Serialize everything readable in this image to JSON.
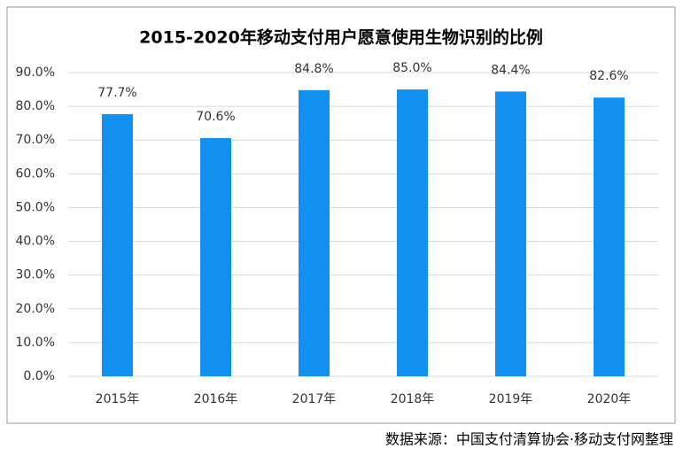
{
  "chart_data": {
    "type": "bar",
    "title": "2015-2020年移动支付用户愿意使用生物识别的比例",
    "categories": [
      "2015年",
      "2016年",
      "2017年",
      "2018年",
      "2019年",
      "2020年"
    ],
    "values": [
      77.7,
      70.6,
      84.8,
      85.0,
      84.4,
      82.6
    ],
    "value_labels": [
      "77.7%",
      "70.6%",
      "84.8%",
      "85.0%",
      "84.4%",
      "82.6%"
    ],
    "color": "#1190f2",
    "ylim": [
      0,
      90
    ],
    "yticks": [
      {
        "value": 0,
        "label": "0.0%"
      },
      {
        "value": 10,
        "label": "10.0%"
      },
      {
        "value": 20,
        "label": "20.0%"
      },
      {
        "value": 30,
        "label": "30.0%"
      },
      {
        "value": 40,
        "label": "40.0%"
      },
      {
        "value": 50,
        "label": "50.0%"
      },
      {
        "value": 60,
        "label": "60.0%"
      },
      {
        "value": 70,
        "label": "70.0%"
      },
      {
        "value": 80,
        "label": "80.0%"
      },
      {
        "value": 90,
        "label": "90.0%"
      }
    ],
    "grid": true,
    "source": "数据来源：中国支付清算协会·移动支付网整理"
  }
}
